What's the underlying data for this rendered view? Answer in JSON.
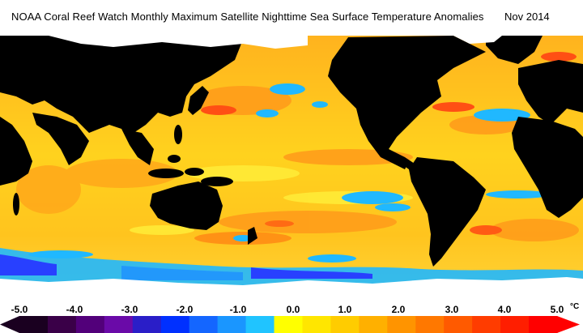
{
  "header": {
    "title": "NOAA Coral Reef Watch Monthly Maximum Satellite Nighttime Sea Surface Temperature Anomalies",
    "date": "Nov 2014"
  },
  "legend": {
    "ticks": [
      "-5.0",
      "-4.0",
      "-3.0",
      "-2.0",
      "-1.0",
      "0.0",
      "1.0",
      "2.0",
      "3.0",
      "4.0",
      "5.0"
    ],
    "unit": "°C",
    "colors": [
      "#1a0020",
      "#3a0048",
      "#52007a",
      "#6a0aa8",
      "#2a1ec8",
      "#0030ff",
      "#1466ff",
      "#1a96ff",
      "#20c4ff",
      "#ffff00",
      "#ffe600",
      "#ffcc00",
      "#ffb000",
      "#ff9400",
      "#ff7800",
      "#ff5a00",
      "#ff3c00",
      "#ff1e00",
      "#ff0000"
    ]
  },
  "map_colors": {
    "land": "#000000",
    "ice": "#ffffff",
    "ocean_base": "#ffc81e",
    "warm": "#ff9a1a",
    "hot": "#ff4f14",
    "neutral": "#ffef3a",
    "cool": "#20b8ff",
    "cold": "#2840ff"
  }
}
